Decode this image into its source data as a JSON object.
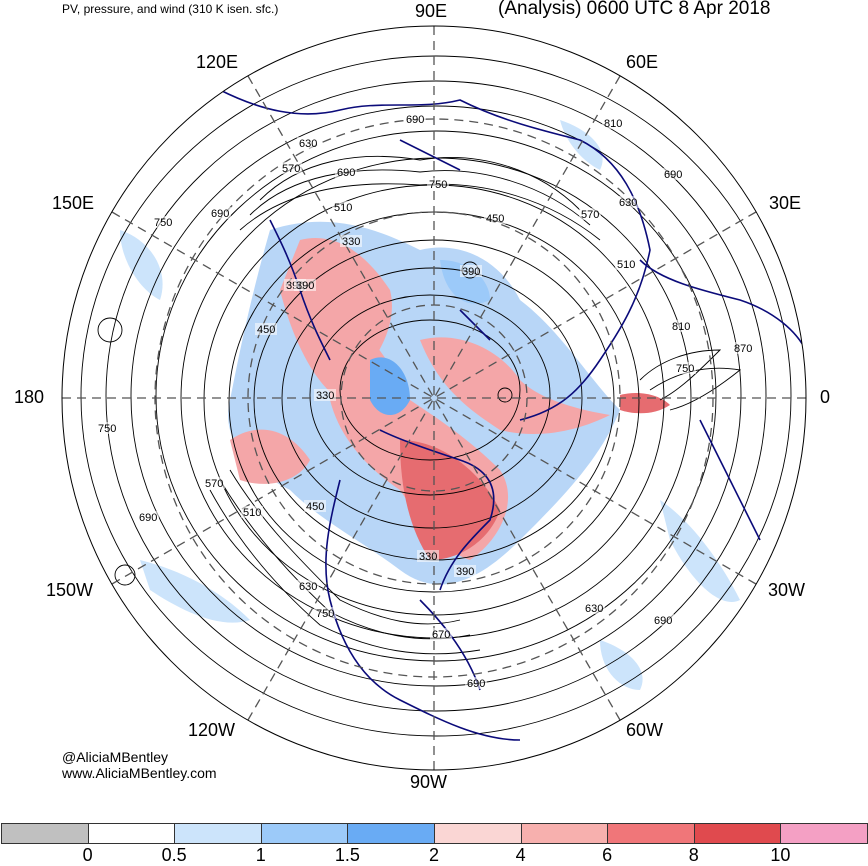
{
  "header": {
    "left_title": "PV, pressure, and wind (310 K isen. sfc.)",
    "right_title": "(Analysis) 0600 UTC 8 Apr 2018"
  },
  "map": {
    "longitude_labels": {
      "top": "90E",
      "upper_left": "120E",
      "upper_right": "60E",
      "left_upper": "150E",
      "right_upper": "30E",
      "left": "180",
      "right": "0",
      "left_lower": "150W",
      "right_lower": "30W",
      "lower_left": "120W",
      "lower_right": "60W",
      "bottom": "90W"
    },
    "contour_labels": [
      "390",
      "630",
      "570",
      "690",
      "750",
      "510",
      "330",
      "390",
      "450",
      "750",
      "690",
      "810",
      "630",
      "570",
      "690",
      "450",
      "390",
      "330",
      "510",
      "870",
      "810",
      "750",
      "750",
      "570",
      "510",
      "450",
      "690",
      "630",
      "750",
      "670",
      "630",
      "690",
      "690",
      "330",
      "390",
      "690"
    ],
    "colors": {
      "coast": "#0b0b7a",
      "contour": "#000000",
      "grid": "#555555",
      "pv_low": "#b8d6f7",
      "pv_high": "#f0a0a4"
    }
  },
  "credits": {
    "handle": "@AliciaMBentley",
    "site": "www.AliciaMBentley.com"
  },
  "colorbar": {
    "bins": [
      {
        "color": "#c0c0c0"
      },
      {
        "color": "#ffffff"
      },
      {
        "color": "#cce4fb"
      },
      {
        "color": "#9ccaf9"
      },
      {
        "color": "#69abf4"
      },
      {
        "color": "#fad6d4"
      },
      {
        "color": "#f7b0ae"
      },
      {
        "color": "#f07679"
      },
      {
        "color": "#e04a4e"
      },
      {
        "color": "#f4a0c4"
      }
    ],
    "labels": [
      "0",
      "0.5",
      "1",
      "1.5",
      "2",
      "4",
      "6",
      "8",
      "10"
    ]
  }
}
